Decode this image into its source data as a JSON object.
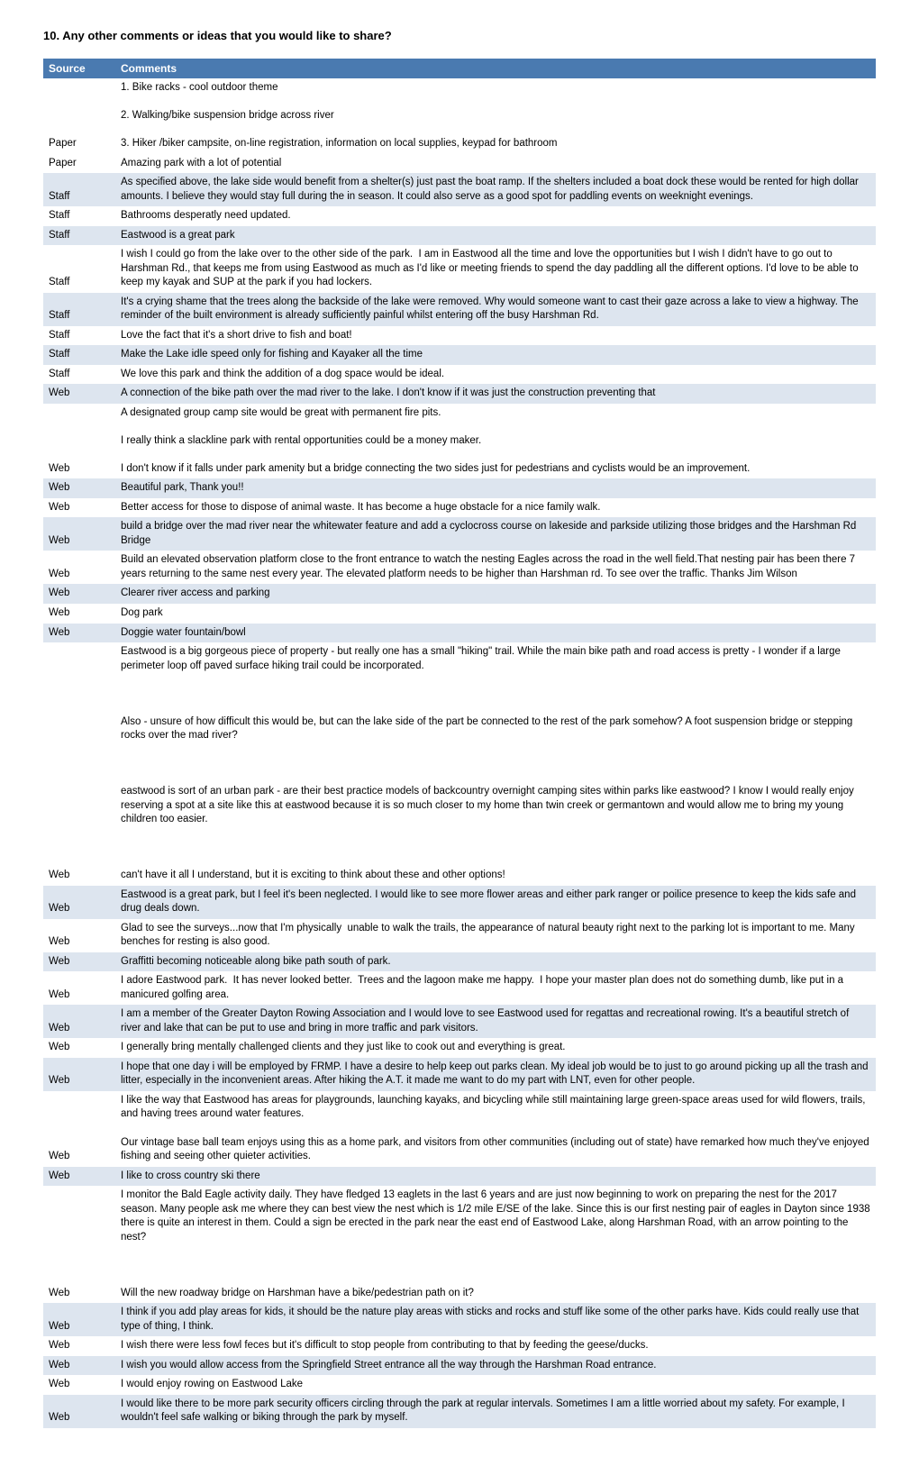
{
  "heading": "10. Any other comments or ideas that you would like to share?",
  "columns": [
    "Source",
    "Comments"
  ],
  "rows": [
    {
      "shade": false,
      "source": "Paper",
      "comment": "1. Bike racks - cool outdoor theme\n\n2. Walking/bike suspension bridge across river\n\n3. Hiker /biker campsite, on-line registration, information on local supplies, keypad for bathroom"
    },
    {
      "shade": false,
      "source": "Paper",
      "comment": "Amazing park with a lot of potential"
    },
    {
      "shade": true,
      "source": "Staff",
      "comment": "As specified above, the lake side would benefit from a shelter(s) just past the boat ramp. If the shelters included a boat dock these would be rented for high dollar amounts. I believe they would stay full during the in season. It could also serve as a good spot for paddling events on weeknight evenings."
    },
    {
      "shade": false,
      "source": "Staff",
      "comment": "Bathrooms desperatly need updated."
    },
    {
      "shade": true,
      "source": "Staff",
      "comment": "Eastwood is a great park"
    },
    {
      "shade": false,
      "source": "Staff",
      "comment": "I wish I could go from the lake over to the other side of the park.  I am in Eastwood all the time and love the opportunities but I wish I didn't have to go out to Harshman Rd., that keeps me from using Eastwood as much as I'd like or meeting friends to spend the day paddling all the different options. I'd love to be able to keep my kayak and SUP at the park if you had lockers."
    },
    {
      "shade": true,
      "source": "Staff",
      "comment": "It's a crying shame that the trees along the backside of the lake were removed. Why would someone want to cast their gaze across a lake to view a highway. The reminder of the built environment is already sufficiently painful whilst entering off the busy Harshman Rd."
    },
    {
      "shade": false,
      "source": "Staff",
      "comment": "Love the fact that it's a short drive to fish and boat!"
    },
    {
      "shade": true,
      "source": "Staff",
      "comment": "Make the Lake idle speed only for fishing and Kayaker all the time"
    },
    {
      "shade": false,
      "source": "Staff",
      "comment": "We love this park and think the addition of a dog space would be ideal."
    },
    {
      "shade": true,
      "source": "Web",
      "comment": "A connection of the bike path over the mad river to the lake. I don't know if it was just the construction preventing that"
    },
    {
      "shade": false,
      "source": "Web",
      "comment": "A designated group camp site would be great with permanent fire pits.\n\nI really think a slackline park with rental opportunities could be a money maker.\n\nI don't know if it falls under park amenity but a bridge connecting the two sides just for pedestrians and cyclists would be an improvement."
    },
    {
      "shade": true,
      "source": "Web",
      "comment": "Beautiful park, Thank you!!"
    },
    {
      "shade": false,
      "source": "Web",
      "comment": "Better access for those to dispose of animal waste. It has become a huge obstacle for a nice family walk."
    },
    {
      "shade": true,
      "source": "Web",
      "comment": "build a bridge over the mad river near the whitewater feature and add a cyclocross course on lakeside and parkside utilizing those bridges and the Harshman Rd Bridge"
    },
    {
      "shade": false,
      "source": "Web",
      "comment": "Build an elevated observation platform close to the front entrance to watch the nesting Eagles across the road in the well field.That nesting pair has been there 7 years returning to the same nest every year. The elevated platform needs to be higher than Harshman rd. To see over the traffic. Thanks Jim Wilson"
    },
    {
      "shade": true,
      "source": "Web",
      "comment": "Clearer river access and parking"
    },
    {
      "shade": false,
      "source": "Web",
      "comment": "Dog park"
    },
    {
      "shade": true,
      "source": "Web",
      "comment": "Doggie water fountain/bowl"
    },
    {
      "shade": false,
      "source": "Web",
      "comment": "Eastwood is a big gorgeous piece of property - but really one has a small \"hiking\" trail. While the main bike path and road access is pretty - I wonder if a large perimeter loop off paved surface hiking trail could be incorporated.\n\n\n\nAlso - unsure of how difficult this would be, but can the lake side of the part be connected to the rest of the park somehow? A foot suspension bridge or stepping rocks over the mad river?\n\n\n\neastwood is sort of an urban park - are their best practice models of backcountry overnight camping sites within parks like eastwood? I know I would really enjoy reserving a spot at a site like this at eastwood because it is so much closer to my home than twin creek or germantown and would allow me to bring my young children too easier.\n\n\n\ncan't have it all I understand, but it is exciting to think about these and other options!"
    },
    {
      "shade": true,
      "source": "Web",
      "comment": "Eastwood is a great park, but I feel it's been neglected. I would like to see more flower areas and either park ranger or poilice presence to keep the kids safe and drug deals down."
    },
    {
      "shade": false,
      "source": "Web",
      "comment": "Glad to see the surveys...now that I'm physically  unable to walk the trails, the appearance of natural beauty right next to the parking lot is important to me. Many benches for resting is also good."
    },
    {
      "shade": true,
      "source": "Web",
      "comment": "Graffitti becoming noticeable along bike path south of park."
    },
    {
      "shade": false,
      "source": "Web",
      "comment": "I adore Eastwood park.  It has never looked better.  Trees and the lagoon make me happy.  I hope your master plan does not do something dumb, like put in a manicured golfing area."
    },
    {
      "shade": true,
      "source": "Web",
      "comment": "I am a member of the Greater Dayton Rowing Association and I would love to see Eastwood used for regattas and recreational rowing. It's a beautiful stretch of river and lake that can be put to use and bring in more traffic and park visitors."
    },
    {
      "shade": false,
      "source": "Web",
      "comment": "I generally bring mentally challenged clients and they just like to cook out and everything is great."
    },
    {
      "shade": true,
      "source": "Web",
      "comment": "I hope that one day i will be employed by FRMP. I have a desire to help keep out parks clean. My ideal job would be to just to go around picking up all the trash and litter, especially in the inconvenient areas. After hiking the A.T. it made me want to do my part with LNT, even for other people."
    },
    {
      "shade": false,
      "source": "Web",
      "comment": "I like the way that Eastwood has areas for playgrounds, launching kayaks, and bicycling while still maintaining large green-space areas used for wild flowers, trails, and having trees around water features.\n\nOur vintage base ball team enjoys using this as a home park, and visitors from other communities (including out of state) have remarked how much they've enjoyed fishing and seeing other quieter activities."
    },
    {
      "shade": true,
      "source": "Web",
      "comment": "I like to cross country ski there"
    },
    {
      "shade": false,
      "source": "Web",
      "comment": "I monitor the Bald Eagle activity daily. They have fledged 13 eaglets in the last 6 years and are just now beginning to work on preparing the nest for the 2017 season. Many people ask me where they can best view the nest which is 1/2 mile E/SE of the lake. Since this is our first nesting pair of eagles in Dayton since 1938 there is quite an interest in them. Could a sign be erected in the park near the east end of Eastwood Lake, along Harshman Road, with an arrow pointing to the nest?\n\n\n\nWill the new roadway bridge on Harshman have a bike/pedestrian path on it?"
    },
    {
      "shade": true,
      "source": "Web",
      "comment": "I think if you add play areas for kids, it should be the nature play areas with sticks and rocks and stuff like some of the other parks have. Kids could really use that type of thing, I think."
    },
    {
      "shade": false,
      "source": "Web",
      "comment": "I wish there were less fowl feces but it's difficult to stop people from contributing to that by feeding the geese/ducks."
    },
    {
      "shade": true,
      "source": "Web",
      "comment": "I wish you would allow access from the Springfield Street entrance all the way through the Harshman Road entrance."
    },
    {
      "shade": false,
      "source": "Web",
      "comment": "I would enjoy rowing on Eastwood Lake"
    },
    {
      "shade": true,
      "source": "Web",
      "comment": "I would like there to be more park security officers circling through the park at regular intervals. Sometimes I am a little worried about my safety. For example, I wouldn't feel safe walking or biking through the park by myself."
    }
  ]
}
